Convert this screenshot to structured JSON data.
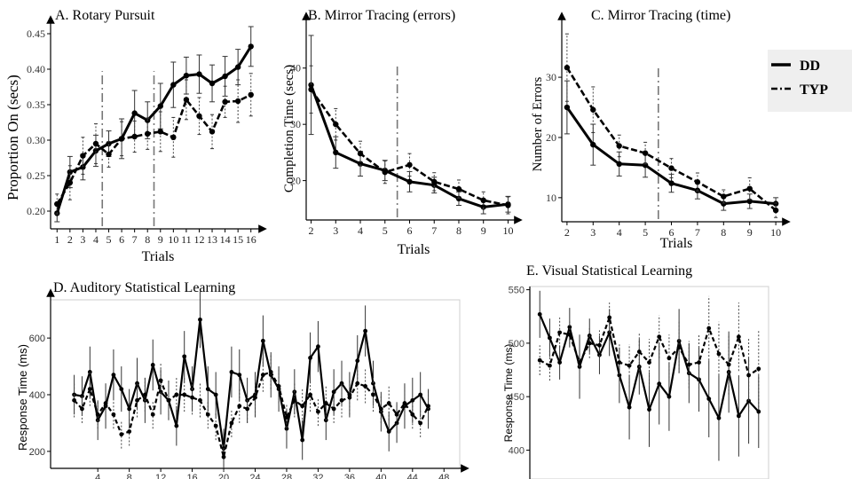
{
  "legend": {
    "items": [
      {
        "label": "DD",
        "style": "solid"
      },
      {
        "label": "TYP",
        "style": "dashed"
      }
    ]
  },
  "chart_data": [
    {
      "id": "A",
      "type": "line",
      "title": "A. Rotary Pursuit",
      "xlabel": "Trials",
      "ylabel": "Proportion On (secs)",
      "x": [
        1,
        2,
        3,
        4,
        5,
        6,
        7,
        8,
        9,
        10,
        11,
        12,
        13,
        14,
        15,
        16
      ],
      "xticks": [
        "1",
        "2",
        "3",
        "4",
        "5",
        "6",
        "7",
        "8",
        "9",
        "10",
        "11",
        "12",
        "13",
        "14",
        "15",
        "16"
      ],
      "yticks": [
        "0.20",
        "0.25",
        "0.30",
        "0.35",
        "0.40",
        "0.45"
      ],
      "ylim": [
        0.175,
        0.46
      ],
      "vlines": [
        4.5,
        8.5
      ],
      "series": [
        {
          "name": "DD",
          "style": "solid",
          "values": [
            0.197,
            0.255,
            0.262,
            0.285,
            0.295,
            0.302,
            0.338,
            0.328,
            0.348,
            0.378,
            0.391,
            0.393,
            0.38,
            0.39,
            0.403,
            0.432
          ],
          "err": [
            0.012,
            0.022,
            0.018,
            0.022,
            0.018,
            0.028,
            0.032,
            0.026,
            0.032,
            0.032,
            0.026,
            0.027,
            0.026,
            0.028,
            0.025,
            0.028
          ]
        },
        {
          "name": "TYP",
          "style": "dashed",
          "values": [
            0.21,
            0.24,
            0.278,
            0.295,
            0.28,
            0.302,
            0.305,
            0.309,
            0.312,
            0.304,
            0.357,
            0.334,
            0.312,
            0.354,
            0.355,
            0.364
          ],
          "err": [
            0.014,
            0.024,
            0.026,
            0.028,
            0.018,
            0.024,
            0.022,
            0.022,
            0.028,
            0.028,
            0.028,
            0.026,
            0.024,
            0.022,
            0.03,
            0.03
          ]
        }
      ]
    },
    {
      "id": "B",
      "type": "line",
      "title": "B. Mirror Tracing (errors)",
      "xlabel": "Trials",
      "ylabel": "Completion Time (secs)",
      "x": [
        2,
        3,
        4,
        5,
        6,
        7,
        8,
        9,
        10
      ],
      "xticks": [
        "2",
        "3",
        "4",
        "5",
        "6",
        "7",
        "8",
        "9",
        "10"
      ],
      "yticks": [
        "20",
        "30",
        "40"
      ],
      "ylim": [
        13,
        48
      ],
      "vlines": [
        5.5
      ],
      "series": [
        {
          "name": "DD",
          "style": "solid",
          "values": [
            37.0,
            25.0,
            23.0,
            21.8,
            19.8,
            19.2,
            16.8,
            15.3,
            15.8
          ],
          "err": [
            8.8,
            2.8,
            2.2,
            1.8,
            1.8,
            1.4,
            1.2,
            1.2,
            1.4
          ]
        },
        {
          "name": "TYP",
          "style": "dashed",
          "values": [
            36.2,
            30.0,
            24.8,
            21.5,
            22.8,
            19.8,
            18.5,
            16.5,
            15.6
          ],
          "err": [
            4.2,
            2.8,
            2.2,
            2.0,
            2.0,
            1.6,
            1.6,
            1.5,
            1.5
          ]
        }
      ]
    },
    {
      "id": "C",
      "type": "line",
      "title": "C. Mirror Tracing (time)",
      "xlabel": "Trials",
      "ylabel": "Number of Errors",
      "x": [
        2,
        3,
        4,
        5,
        6,
        7,
        8,
        9,
        10
      ],
      "xticks": [
        "2",
        "3",
        "4",
        "5",
        "6",
        "7",
        "8",
        "9",
        "10"
      ],
      "yticks": [
        "10",
        "20",
        "30"
      ],
      "ylim": [
        6,
        39
      ],
      "vlines": [
        5.5
      ],
      "series": [
        {
          "name": "DD",
          "style": "solid",
          "values": [
            25.0,
            18.8,
            15.6,
            15.4,
            12.4,
            11.2,
            9.0,
            9.4,
            9.0
          ],
          "err": [
            4.4,
            3.4,
            2.0,
            2.0,
            1.5,
            1.4,
            1.1,
            1.2,
            1.0
          ]
        },
        {
          "name": "TYP",
          "style": "dashed",
          "values": [
            31.6,
            24.6,
            18.6,
            17.4,
            14.9,
            12.6,
            10.2,
            11.5,
            7.9
          ],
          "err": [
            5.6,
            3.8,
            1.8,
            1.8,
            1.6,
            1.5,
            1.1,
            1.8,
            1.2
          ]
        }
      ]
    },
    {
      "id": "D",
      "type": "line",
      "title": "D. Auditory Statistical Learning",
      "xlabel": "",
      "ylabel": "Response Time (ms)",
      "xlim": [
        -2,
        50
      ],
      "xticks": [
        "4",
        "8",
        "12",
        "16",
        "20",
        "24",
        "28",
        "32",
        "36",
        "40",
        "44",
        "48"
      ],
      "yticks": [
        "200",
        "400",
        "600"
      ],
      "ylim": [
        140,
        735
      ],
      "series": [
        {
          "name": "DD",
          "style": "solid",
          "values": [
            400,
            395,
            480,
            310,
            360,
            470,
            420,
            350,
            440,
            380,
            505,
            410,
            380,
            290,
            535,
            420,
            665,
            420,
            400,
            210,
            480,
            470,
            380,
            400,
            590,
            470,
            420,
            280,
            410,
            240,
            530,
            570,
            310,
            410,
            440,
            400,
            520,
            625,
            440,
            340,
            270,
            300,
            360,
            380,
            400,
            350
          ],
          "err": [
            70,
            70,
            90,
            70,
            80,
            90,
            80,
            70,
            90,
            80,
            90,
            80,
            70,
            70,
            90,
            80,
            100,
            80,
            80,
            70,
            90,
            90,
            80,
            80,
            90,
            80,
            80,
            70,
            80,
            70,
            90,
            90,
            70,
            80,
            80,
            80,
            90,
            90,
            80,
            70,
            70,
            70,
            80,
            80,
            80,
            70
          ]
        },
        {
          "name": "TYP",
          "style": "dashed",
          "values": [
            380,
            350,
            420,
            330,
            370,
            330,
            260,
            270,
            380,
            400,
            330,
            450,
            380,
            400,
            400,
            390,
            380,
            330,
            290,
            180,
            300,
            360,
            350,
            390,
            470,
            480,
            430,
            320,
            380,
            360,
            400,
            340,
            370,
            350,
            380,
            390,
            440,
            430,
            400,
            350,
            370,
            330,
            370,
            330,
            300,
            360
          ],
          "err": [
            60,
            50,
            60,
            50,
            60,
            50,
            50,
            50,
            60,
            60,
            50,
            60,
            60,
            60,
            60,
            60,
            60,
            50,
            50,
            50,
            50,
            60,
            50,
            60,
            60,
            60,
            60,
            50,
            60,
            60,
            60,
            50,
            60,
            50,
            60,
            60,
            60,
            60,
            60,
            50,
            60,
            50,
            60,
            50,
            50,
            60
          ]
        }
      ]
    },
    {
      "id": "E",
      "type": "line",
      "title": "E. Visual Statistical Learning",
      "xlabel": "",
      "ylabel": "Response Time (ms)",
      "yticks": [
        "400",
        "450",
        "500",
        "550"
      ],
      "ylim": [
        373,
        553
      ],
      "series": [
        {
          "name": "DD",
          "style": "solid",
          "values": [
            527,
            505,
            482,
            515,
            478,
            507,
            489,
            510,
            470,
            440,
            478,
            438,
            462,
            450,
            502,
            472,
            466,
            448,
            430,
            473,
            432,
            446,
            436
          ],
          "err": [
            22,
            18,
            16,
            18,
            30,
            16,
            18,
            22,
            26,
            30,
            26,
            35,
            38,
            32,
            30,
            28,
            30,
            36,
            40,
            38,
            38,
            40,
            34
          ]
        },
        {
          "name": "TYP",
          "style": "dashed",
          "values": [
            484,
            479,
            510,
            508,
            482,
            500,
            498,
            524,
            482,
            479,
            492,
            482,
            506,
            486,
            496,
            480,
            482,
            514,
            490,
            480,
            506,
            470,
            476
          ],
          "err": [
            14,
            14,
            14,
            12,
            14,
            14,
            14,
            14,
            18,
            20,
            18,
            22,
            20,
            22,
            24,
            22,
            26,
            30,
            30,
            28,
            32,
            34,
            36
          ]
        }
      ]
    }
  ]
}
